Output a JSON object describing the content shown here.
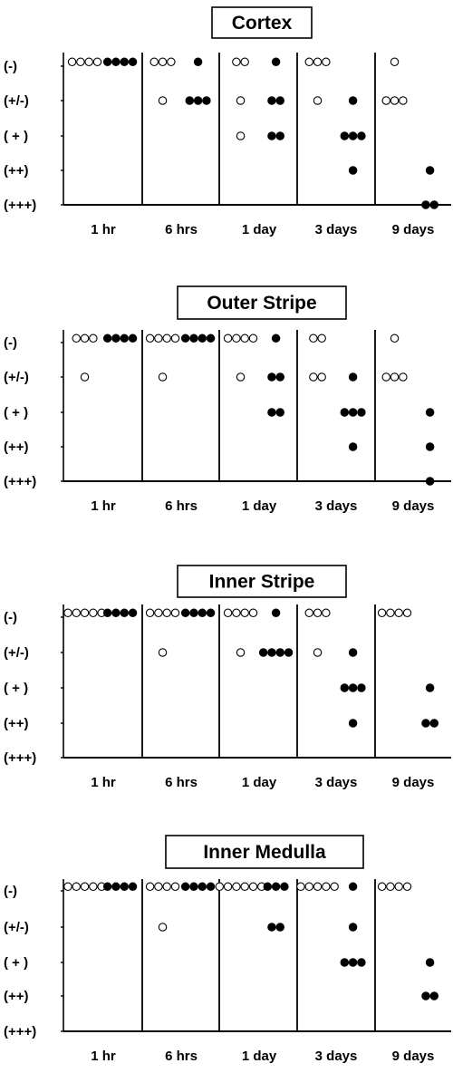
{
  "chart_data": [
    {
      "type": "scatter",
      "title": "Cortex",
      "y_levels": [
        "(-)",
        "(+/-)",
        "( + )",
        "(++)",
        "(+++)"
      ],
      "categories": [
        "1 hr",
        "6 hrs",
        "1 day",
        "3 days",
        "9 days"
      ],
      "series": [
        {
          "marker": "open",
          "values": [
            [
              0,
              0,
              0,
              0
            ],
            [
              1,
              0,
              0,
              0
            ],
            [
              2,
              1,
              0,
              0
            ],
            [
              1,
              0,
              0,
              0
            ],
            [
              1,
              1,
              1,
              0
            ]
          ]
        },
        {
          "marker": "filled",
          "values": [
            [
              0,
              0,
              0,
              0
            ],
            [
              1,
              1,
              1,
              0
            ],
            [
              2,
              2,
              1,
              1,
              0
            ],
            [
              3,
              2,
              2,
              2,
              1
            ],
            [
              4,
              4,
              3
            ]
          ]
        }
      ]
    },
    {
      "type": "scatter",
      "title": "Outer Stripe",
      "y_levels": [
        "(-)",
        "(+/-)",
        "( + )",
        "(++)",
        "(+++)"
      ],
      "categories": [
        "1 hr",
        "6 hrs",
        "1 day",
        "3 days",
        "9 days"
      ],
      "series": [
        {
          "marker": "open",
          "values": [
            [
              1,
              0,
              0,
              0
            ],
            [
              1,
              0,
              0,
              0,
              0
            ],
            [
              1,
              0,
              0,
              0,
              0
            ],
            [
              1,
              1,
              0,
              0
            ],
            [
              1,
              1,
              1,
              0
            ]
          ]
        },
        {
          "marker": "filled",
          "values": [
            [
              0,
              0,
              0,
              0
            ],
            [
              0,
              0,
              0,
              0
            ],
            [
              2,
              2,
              1,
              1,
              0
            ],
            [
              3,
              2,
              2,
              2,
              1
            ],
            [
              4,
              3,
              2
            ]
          ]
        }
      ]
    },
    {
      "type": "scatter",
      "title": "Inner Stripe",
      "y_levels": [
        "(-)",
        "(+/-)",
        "( + )",
        "(++)",
        "(+++)"
      ],
      "categories": [
        "1 hr",
        "6 hrs",
        "1 day",
        "3 days",
        "9 days"
      ],
      "series": [
        {
          "marker": "open",
          "values": [
            [
              0,
              0,
              0,
              0,
              0
            ],
            [
              1,
              0,
              0,
              0,
              0
            ],
            [
              1,
              0,
              0,
              0,
              0
            ],
            [
              1,
              0,
              0,
              0
            ],
            [
              0,
              0,
              0,
              0
            ]
          ]
        },
        {
          "marker": "filled",
          "values": [
            [
              0,
              0,
              0,
              0
            ],
            [
              0,
              0,
              0,
              0
            ],
            [
              1,
              1,
              1,
              1,
              0
            ],
            [
              3,
              2,
              2,
              2,
              1
            ],
            [
              3,
              3,
              2
            ]
          ]
        }
      ]
    },
    {
      "type": "scatter",
      "title": "Inner Medulla",
      "y_levels": [
        "(-)",
        "(+/-)",
        "( + )",
        "(++)",
        "(+++)"
      ],
      "categories": [
        "1 hr",
        "6 hrs",
        "1 day",
        "3 days",
        "9 days"
      ],
      "series": [
        {
          "marker": "open",
          "values": [
            [
              0,
              0,
              0,
              0,
              0
            ],
            [
              1,
              0,
              0,
              0,
              0
            ],
            [
              0,
              0,
              0,
              0,
              0,
              0
            ],
            [
              0,
              0,
              0,
              0,
              0
            ],
            [
              0,
              0,
              0,
              0
            ]
          ]
        },
        {
          "marker": "filled",
          "values": [
            [
              0,
              0,
              0,
              0
            ],
            [
              0,
              0,
              0,
              0
            ],
            [
              1,
              1,
              0,
              0,
              0
            ],
            [
              2,
              2,
              2,
              1,
              0
            ],
            [
              3,
              3,
              2
            ]
          ]
        }
      ]
    }
  ]
}
